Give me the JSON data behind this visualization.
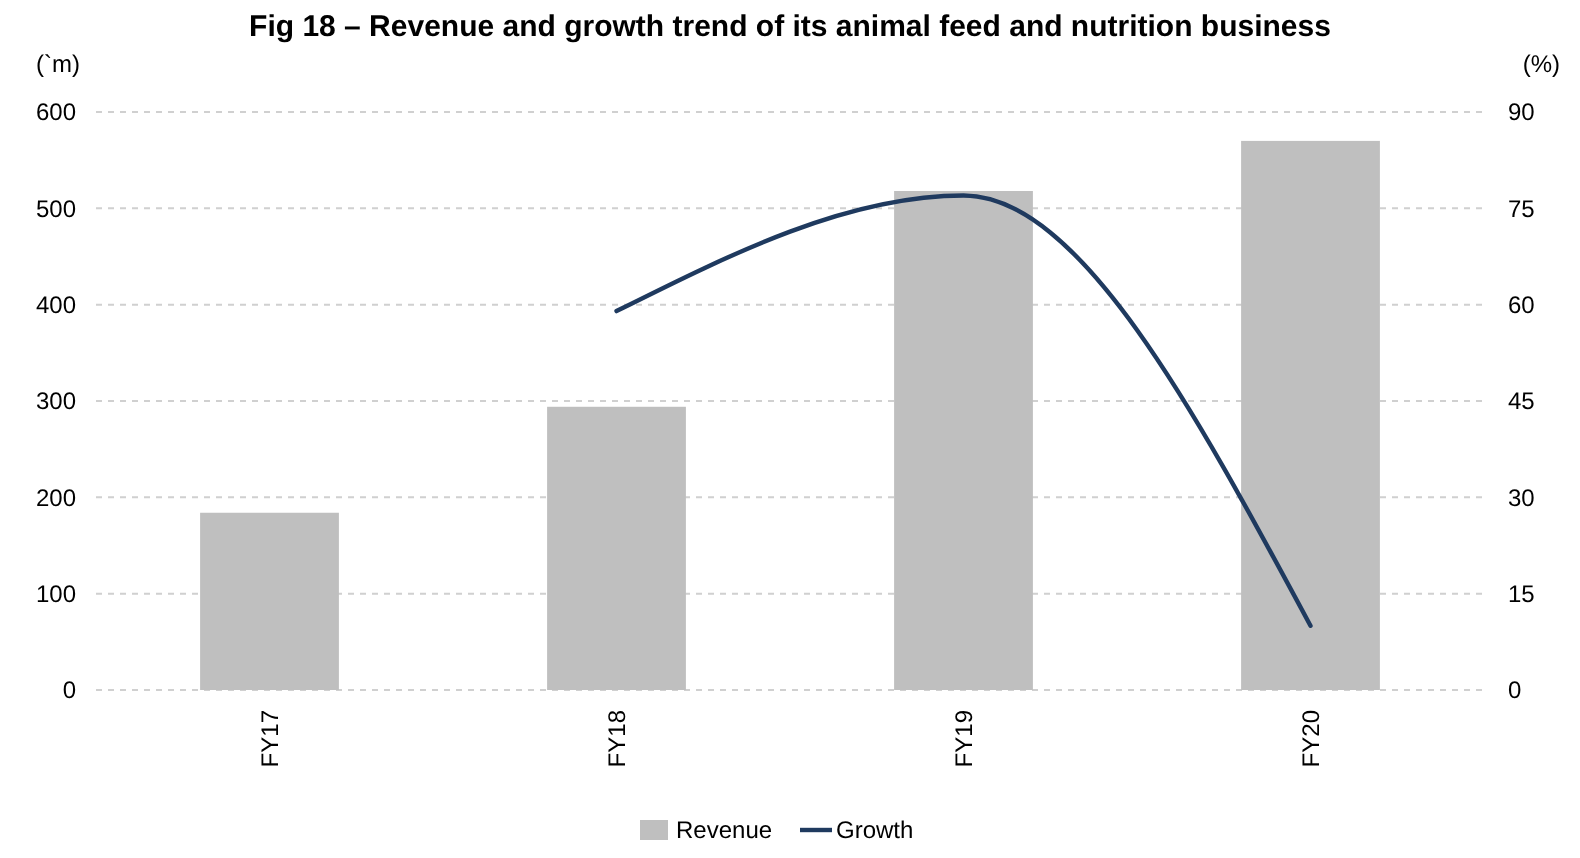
{
  "chart_data": {
    "type": "bar",
    "title": "Fig 18 – Revenue and growth trend of its animal feed and nutrition business",
    "ylabel": "(`m)",
    "y2label": "(%)",
    "categories": [
      "FY17",
      "FY18",
      "FY19",
      "FY20"
    ],
    "series": [
      {
        "name": "Revenue",
        "color": "#bfbfbf",
        "values": [
          184,
          294,
          518,
          570
        ]
      },
      {
        "name": "Growth",
        "type": "line",
        "axis": "y2",
        "color": "#1f3a5f",
        "values": [
          null,
          59,
          77,
          10
        ]
      }
    ],
    "ylim": [
      0,
      600
    ],
    "yticks": [
      0,
      100,
      200,
      300,
      400,
      500,
      600
    ],
    "y2lim": [
      0,
      90
    ],
    "y2ticks": [
      0,
      15,
      30,
      45,
      60,
      75,
      90
    ],
    "grid": "y",
    "legend": "bottom",
    "marker": "none"
  }
}
